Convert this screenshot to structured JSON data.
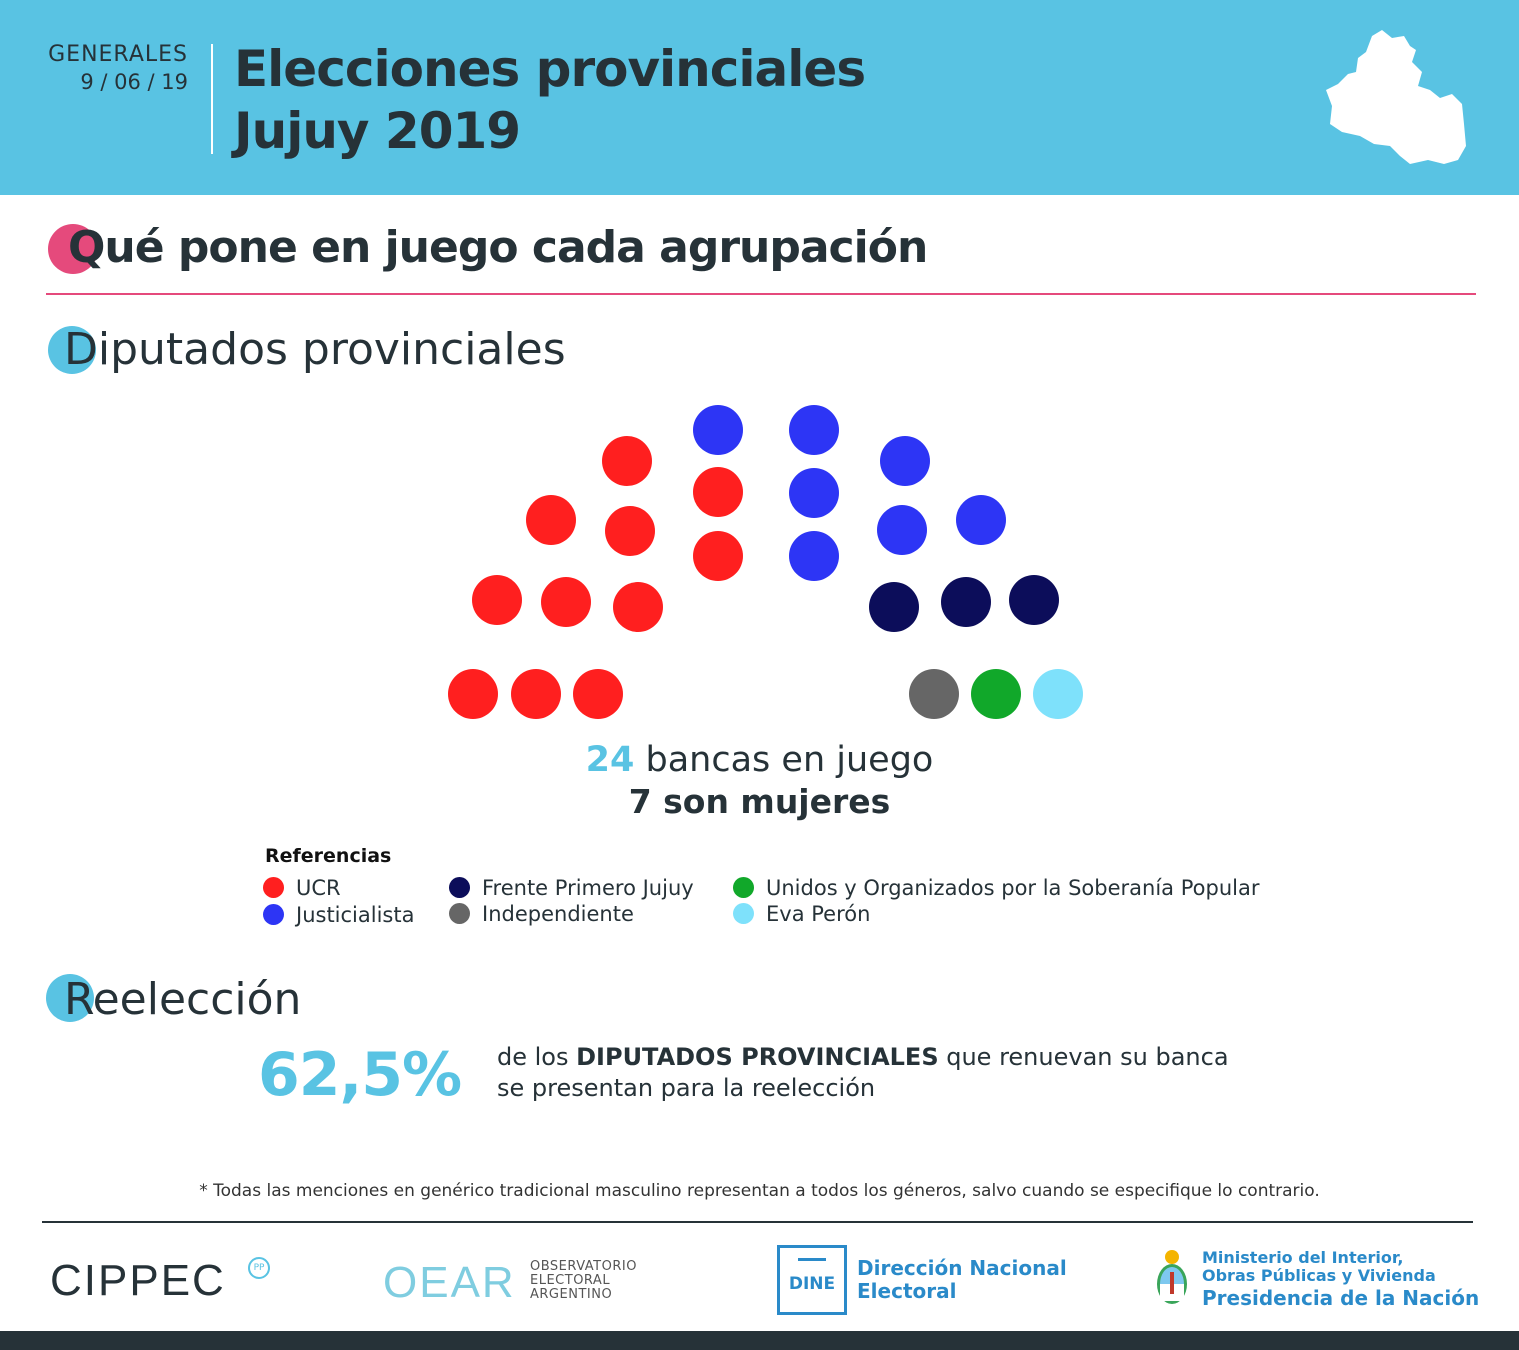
{
  "header": {
    "label": "GENERALES",
    "date": "9 / 06 / 19",
    "title_line1": "Elecciones provinciales",
    "title_line2": "Jujuy 2019"
  },
  "section_main": {
    "title": "Qué pone en juego cada agrupación"
  },
  "section_diputados": {
    "title": "Diputados provinciales"
  },
  "chart_data": {
    "type": "parliament",
    "title": "Diputados provinciales",
    "total_seats": 24,
    "parties": [
      {
        "name": "UCR",
        "seats": 11,
        "color": "#ff1f1f"
      },
      {
        "name": "Justicialista",
        "seats": 7,
        "color": "#2d35f5"
      },
      {
        "name": "Frente Primero Jujuy",
        "seats": 3,
        "color": "#0c0d5a"
      },
      {
        "name": "Independiente",
        "seats": 1,
        "color": "#666666"
      },
      {
        "name": "Unidos y Organizados por la Soberanía Popular",
        "seats": 1,
        "color": "#11a82a"
      },
      {
        "name": "Eva Perón",
        "seats": 1,
        "color": "#7ee1fb"
      }
    ]
  },
  "stats": {
    "seats_number": "24",
    "seats_text": "bancas en juego",
    "women_text": "7 son mujeres"
  },
  "legend": {
    "title": "Referencias",
    "items": [
      {
        "label": "UCR",
        "color": "#ff1f1f"
      },
      {
        "label": "Justicialista",
        "color": "#2d35f5"
      },
      {
        "label": "Frente Primero Jujuy",
        "color": "#0c0d5a"
      },
      {
        "label": "Independiente",
        "color": "#666666"
      },
      {
        "label": "Unidos y Organizados por la Soberanía Popular",
        "color": "#11a82a"
      },
      {
        "label": "Eva Perón",
        "color": "#7ee1fb"
      }
    ]
  },
  "reeleccion": {
    "title": "Reelección",
    "percent": "62,5%",
    "text_pre": "de los ",
    "text_bold": "DIPUTADOS PROVINCIALES",
    "text_post": " que renuevan su banca",
    "text_line2": "se presentan para la reelección"
  },
  "footnote": "* Todas las menciones en genérico tradicional masculino representan a todos los géneros, salvo cuando se especifique lo contrario.",
  "footer": {
    "cippec": "CIPPEC",
    "cippec_badge": "PP",
    "oear": "OEAR",
    "oear_line1": "OBSERVATORIO",
    "oear_line2": "ELECTORAL",
    "oear_line3": "ARGENTINO",
    "dine_box": "DINE",
    "dine_line1": "Dirección Nacional",
    "dine_line2": "Electoral",
    "min_line1": "Ministerio del Interior,",
    "min_line2": "Obras Públicas y Vivienda",
    "min_line3": "Presidencia de la Nación"
  },
  "colors": {
    "accent_blue": "#59c3e3",
    "accent_pink": "#e54a7c",
    "dark": "#263238"
  }
}
